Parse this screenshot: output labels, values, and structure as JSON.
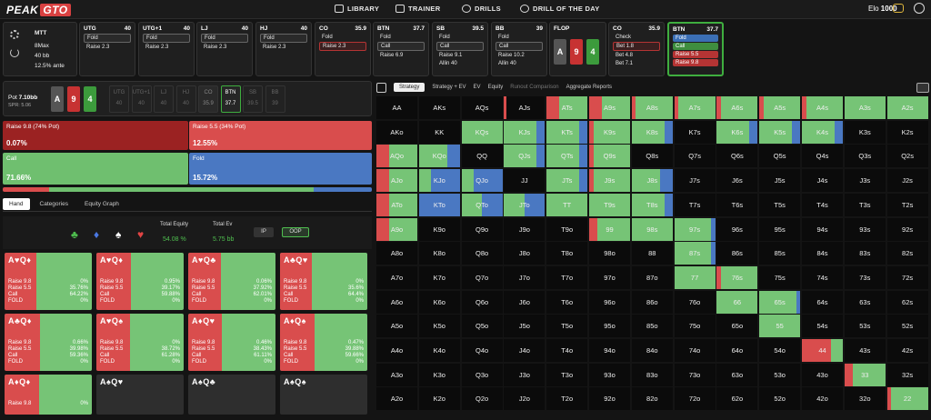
{
  "nav": {
    "logo_a": "PEAK",
    "logo_b": "GTO",
    "items": [
      "LIBRARY",
      "TRAINER",
      "DRILLS",
      "DRILL OF THE DAY"
    ],
    "elo_label": "Elo",
    "elo_value": "1000"
  },
  "game": {
    "type": "MTT",
    "players": "8Max",
    "stack": "40 bb",
    "ante": "12.5% ante"
  },
  "action_cards": [
    {
      "pos": "UTG",
      "stack": "40",
      "actions": [
        "Fold",
        "Raise 2.3"
      ],
      "styles": [
        "sel",
        ""
      ]
    },
    {
      "pos": "UTG+1",
      "stack": "40",
      "actions": [
        "Fold",
        "Raise 2.3"
      ],
      "styles": [
        "sel",
        ""
      ]
    },
    {
      "pos": "LJ",
      "stack": "40",
      "actions": [
        "Fold",
        "Raise 2.3"
      ],
      "styles": [
        "sel",
        ""
      ]
    },
    {
      "pos": "HJ",
      "stack": "40",
      "actions": [
        "Fold",
        "Raise 2.3"
      ],
      "styles": [
        "sel",
        ""
      ]
    },
    {
      "pos": "CO",
      "stack": "35.9",
      "actions": [
        "Fold",
        "Raise 2.3"
      ],
      "styles": [
        "",
        "redb"
      ]
    },
    {
      "pos": "BTN",
      "stack": "37.7",
      "actions": [
        "Fold",
        "Call",
        "Raise 6.9"
      ],
      "styles": [
        "",
        "sel",
        ""
      ]
    },
    {
      "pos": "SB",
      "stack": "39.5",
      "actions": [
        "Fold",
        "Call",
        "Raise 9.1",
        "Allin 40"
      ],
      "styles": [
        "",
        "sel",
        "",
        ""
      ]
    },
    {
      "pos": "BB",
      "stack": "39",
      "actions": [
        "Fold",
        "Call",
        "Raise 10.2",
        "Allin 40"
      ],
      "styles": [
        "",
        "sel",
        "",
        ""
      ]
    },
    {
      "pos": "CO",
      "stack": "35.9",
      "actions": [
        "Check",
        "Bet 1.8",
        "Bet 4.8",
        "Bet 7.1"
      ],
      "styles": [
        "",
        "redb",
        "",
        ""
      ]
    },
    {
      "pos": "BTN",
      "stack": "37.7",
      "actions": [
        "Fold",
        "Call",
        "Raise 5.5",
        "Raise 9.8"
      ],
      "styles": [
        "blue",
        "green",
        "red",
        "red"
      ]
    }
  ],
  "flop": {
    "label": "FLOP",
    "cards": [
      "A",
      "9",
      "4"
    ]
  },
  "pot": {
    "label": "Pot",
    "value": "7.10bb",
    "spr": "SPR: 5.06",
    "board": [
      "A",
      "9",
      "4"
    ]
  },
  "positions": [
    {
      "name": "UTG",
      "stack": "40"
    },
    {
      "name": "UTG+1",
      "stack": "40"
    },
    {
      "name": "LJ",
      "stack": "40"
    },
    {
      "name": "HJ",
      "stack": "40"
    },
    {
      "name": "CO",
      "stack": "35.9"
    },
    {
      "name": "BTN",
      "stack": "37.7"
    },
    {
      "name": "SB",
      "stack": "39.5"
    },
    {
      "name": "BB",
      "stack": "39"
    }
  ],
  "strategy": [
    {
      "label": "Raise 9.8 (74% Pot)",
      "pct": "0.07%",
      "color": "#9b2222"
    },
    {
      "label": "Raise 5.5 (34% Pot)",
      "pct": "12.55%",
      "color": "#d94d4d"
    },
    {
      "label": "Call",
      "pct": "71.66%",
      "color": "#6fbf6f"
    },
    {
      "label": "Fold",
      "pct": "15.72%",
      "color": "#4a78c2"
    }
  ],
  "strategy_bar": {
    "red": 0.1262,
    "green": 0.7166,
    "blue": 0.1572
  },
  "tabs": [
    "Hand",
    "Categories",
    "Equity Graph"
  ],
  "equity": {
    "total_equity_label": "Total Equity",
    "total_equity": "54.08 %",
    "total_ev_label": "Total Ev",
    "total_ev": "5.75 bb",
    "ip": "IP",
    "oop": "OOP"
  },
  "combos": [
    {
      "label": "A♥Q♦",
      "r98": "0%",
      "r55": "35.76%",
      "call": "64.22%",
      "fold": "0%",
      "green": 0.64
    },
    {
      "label": "A♥Q♦",
      "r98": "0.95%",
      "r55": "39.17%",
      "call": "59.88%",
      "fold": "0%",
      "green": 0.6
    },
    {
      "label": "A♥Q♣",
      "r98": "0.06%",
      "r55": "37.92%",
      "call": "62.01%",
      "fold": "0%",
      "green": 0.62
    },
    {
      "label": "A♣Q♥",
      "r98": "0%",
      "r55": "35.6%",
      "call": "64.4%",
      "fold": "0%",
      "green": 0.64
    },
    {
      "label": "A♣Q♦",
      "r98": "0.66%",
      "r55": "39.98%",
      "call": "59.36%",
      "fold": "0%",
      "green": 0.59
    },
    {
      "label": "A♥Q♠",
      "r98": "0%",
      "r55": "38.72%",
      "call": "61.28%",
      "fold": "0%",
      "green": 0.61
    },
    {
      "label": "A♦Q♥",
      "r98": "0.46%",
      "r55": "38.43%",
      "call": "61.11%",
      "fold": "0%",
      "green": 0.61
    },
    {
      "label": "A♦Q♠",
      "r98": "0.47%",
      "r55": "39.88%",
      "call": "59.66%",
      "fold": "0%",
      "green": 0.6
    },
    {
      "label": "A♦Q♦",
      "r98": "0%",
      "r55": "",
      "call": "",
      "fold": "",
      "green": 0.6
    },
    {
      "label": "A♠Q♥",
      "r98": "",
      "r55": "",
      "call": "",
      "fold": "",
      "green": 0
    },
    {
      "label": "A♠Q♣",
      "r98": "",
      "r55": "",
      "call": "",
      "fold": "",
      "green": 0
    },
    {
      "label": "A♠Q♠",
      "r98": "",
      "r55": "",
      "call": "",
      "fold": "",
      "green": 0
    }
  ],
  "combo_row_labels": [
    "Raise 9.8",
    "Raise 5.5",
    "Call",
    "FOLD"
  ],
  "strat_tabs": [
    "Strategy",
    "Strategy + EV",
    "EV",
    "Equity",
    "Runout Comparison",
    "Aggregate Reports"
  ],
  "grid": {
    "ranks": [
      "A",
      "K",
      "Q",
      "J",
      "T",
      "9",
      "8",
      "7",
      "6",
      "5",
      "4",
      "3",
      "2"
    ],
    "fills": {
      "AJs": [
        0.05,
        0.0,
        0.0
      ],
      "ATs": [
        0.3,
        0.7,
        0.0
      ],
      "A9s": [
        0.3,
        0.7,
        0.0
      ],
      "A8s": [
        0.1,
        0.9,
        0.0
      ],
      "A7s": [
        0.1,
        0.9,
        0.0
      ],
      "A6s": [
        0.1,
        0.9,
        0.0
      ],
      "A5s": [
        0.1,
        0.9,
        0.0
      ],
      "A4s": [
        0.1,
        0.9,
        0.0
      ],
      "A3s": [
        0.0,
        1.0,
        0.0
      ],
      "A2s": [
        0.0,
        1.0,
        0.0
      ],
      "AKo": [
        0.0,
        0.0,
        0.0
      ],
      "KQs": [
        0.0,
        1.0,
        0.0
      ],
      "KJs": [
        0.0,
        0.8,
        0.2
      ],
      "KTs": [
        0.0,
        0.8,
        0.2
      ],
      "K9s": [
        0.1,
        0.9,
        0.0
      ],
      "K8s": [
        0.0,
        0.8,
        0.2
      ],
      "K7s": [
        0.0,
        0.0,
        0.0
      ],
      "K6s": [
        0.0,
        0.8,
        0.2
      ],
      "K5s": [
        0.0,
        0.8,
        0.2
      ],
      "K4s": [
        0.0,
        0.8,
        0.2
      ],
      "AQo": [
        0.3,
        0.7,
        0.0
      ],
      "KQo": [
        0.0,
        0.7,
        0.3
      ],
      "QJs": [
        0.0,
        0.8,
        0.2
      ],
      "QTs": [
        0.0,
        0.8,
        0.2
      ],
      "Q9s": [
        0.1,
        0.9,
        0.0
      ],
      "AJo": [
        0.3,
        0.7,
        0.0
      ],
      "KJo": [
        0.0,
        0.3,
        0.7
      ],
      "QJo": [
        0.0,
        0.3,
        0.7
      ],
      "JTs": [
        0.0,
        0.8,
        0.2
      ],
      "J9s": [
        0.1,
        0.9,
        0.0
      ],
      "J8s": [
        0.0,
        0.7,
        0.3
      ],
      "ATo": [
        0.3,
        0.7,
        0.0
      ],
      "KTo": [
        0.0,
        0.0,
        1.0
      ],
      "QTo": [
        0.0,
        0.5,
        0.5
      ],
      "JTo": [
        0.0,
        0.5,
        0.5
      ],
      "TT": [
        0.0,
        1.0,
        0.0
      ],
      "T9s": [
        0.0,
        1.0,
        0.0
      ],
      "T8s": [
        0.0,
        0.8,
        0.2
      ],
      "A9o": [
        0.3,
        0.7,
        0.0
      ],
      "99": [
        0.2,
        0.8,
        0.0
      ],
      "98s": [
        0.0,
        1.0,
        0.0
      ],
      "97s": [
        0.0,
        0.9,
        0.1
      ],
      "87s": [
        0.0,
        0.9,
        0.1
      ],
      "77": [
        0.0,
        1.0,
        0.0
      ],
      "76s": [
        0.1,
        0.9,
        0.0
      ],
      "66": [
        0.0,
        1.0,
        0.0
      ],
      "65s": [
        0.0,
        0.9,
        0.1
      ],
      "55": [
        0.0,
        1.0,
        0.0
      ],
      "44": [
        0.7,
        0.3,
        0.0
      ],
      "33": [
        0.2,
        0.8,
        0.0
      ],
      "22": [
        0.1,
        0.9,
        0.0
      ]
    }
  }
}
